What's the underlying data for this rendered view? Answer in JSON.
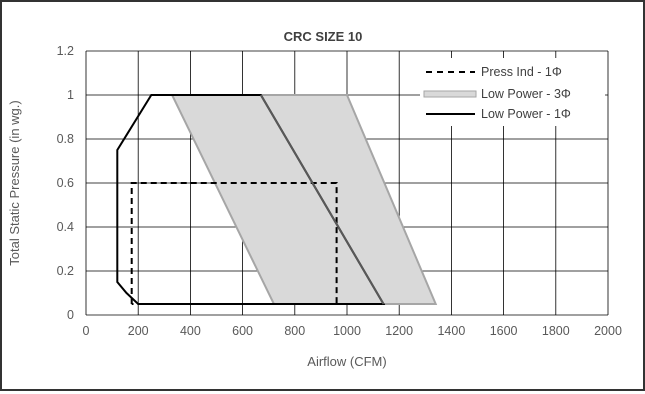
{
  "chart_data": {
    "type": "area",
    "title": "CRC SIZE 10",
    "xlabel": "Airflow (CFM)",
    "ylabel": "Total Static Pressure (in wg.)",
    "xlim": [
      0,
      2000
    ],
    "ylim": [
      0,
      1.2
    ],
    "xticks": [
      0,
      200,
      400,
      600,
      800,
      1000,
      1200,
      1400,
      1600,
      1800,
      2000
    ],
    "yticks": [
      0,
      0.2,
      0.4,
      0.6,
      0.8,
      1,
      1.2
    ],
    "xtick_labels": [
      "0",
      "200",
      "400",
      "600",
      "800",
      "1000",
      "1200",
      "1400",
      "1600",
      "1800",
      "2000"
    ],
    "ytick_labels": [
      "0",
      "0.2",
      "0.4",
      "0.6",
      "0.8",
      "1",
      "1.2"
    ],
    "grid": true,
    "legend_position": "top-right",
    "series": [
      {
        "name": "Press Ind - 1Φ",
        "style": "dashed",
        "color": "#000000",
        "points": [
          [
            175,
            0.05
          ],
          [
            175,
            0.6
          ],
          [
            960,
            0.6
          ],
          [
            960,
            0.05
          ],
          [
            175,
            0.05
          ]
        ]
      },
      {
        "name": "Low Power - 3Φ",
        "style": "filled-area",
        "color": "#a6a6a6",
        "fill": "#d9d9d9",
        "points": [
          [
            330,
            1.0
          ],
          [
            1000,
            1.0
          ],
          [
            1340,
            0.05
          ],
          [
            720,
            0.05
          ],
          [
            330,
            1.0
          ]
        ]
      },
      {
        "name": "Low Power - 1Φ",
        "style": "solid",
        "color": "#000000",
        "points": [
          [
            200,
            0.05
          ],
          [
            1140,
            0.05
          ],
          [
            670,
            1.0
          ],
          [
            250,
            1.0
          ],
          [
            120,
            0.75
          ],
          [
            120,
            0.15
          ],
          [
            155,
            0.1
          ],
          [
            200,
            0.05
          ]
        ]
      }
    ],
    "colors": {
      "grid": "#000000",
      "axis_text": "#595959",
      "line_1phase": "#595959"
    }
  }
}
